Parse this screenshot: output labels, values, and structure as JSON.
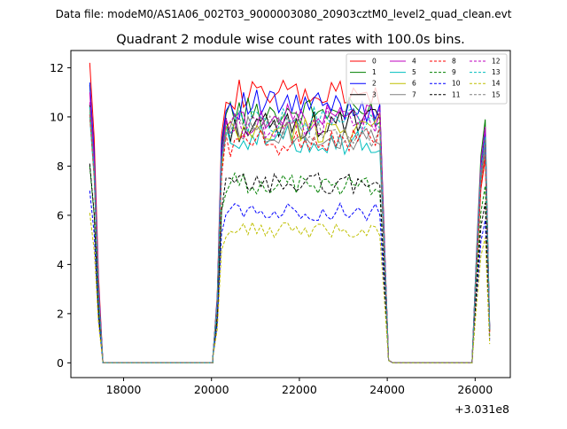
{
  "figure": {
    "suptitle": "Data file: modeM0/AS1A06_002T03_9000003080_20903cztM0_level2_quad_clean.evt"
  },
  "chart_data": {
    "type": "line",
    "title": "Quadrant 2 module wise count rates with 100.0s bins.",
    "xlabel": "",
    "ylabel": "",
    "x_offset_label": "+3.031e8",
    "xlim": [
      16800,
      26800
    ],
    "ylim": [
      -0.6,
      12.7
    ],
    "x_ticks": [
      18000,
      20000,
      22000,
      24000,
      26000
    ],
    "x_tick_labels": [
      "18000",
      "20000",
      "22000",
      "24000",
      "26000"
    ],
    "y_ticks": [
      0,
      2,
      4,
      6,
      8,
      10,
      12
    ],
    "y_tick_labels": [
      "0",
      "2",
      "4",
      "6",
      "8",
      "10",
      "12"
    ],
    "grid": false,
    "legend_placement": "top-right",
    "legend_columns": 4,
    "segments": [
      {
        "start": 17230,
        "step": 100,
        "count": 3
      },
      {
        "start": 17530,
        "step": 100,
        "count": 26
      },
      {
        "start": 20030,
        "step": 100,
        "count": 40
      },
      {
        "start": 24030,
        "step": 100,
        "count": 20
      },
      {
        "start": 26030,
        "step": 100,
        "count": 4
      }
    ],
    "series": [
      {
        "name": "0",
        "color": "#ff0000",
        "dashed": false,
        "levels": [
          12.2,
          3.5,
          10.9,
          0.0,
          10.8,
          0.0,
          8.3
        ]
      },
      {
        "name": "1",
        "color": "#008000",
        "dashed": false,
        "levels": [
          11.3,
          3.0,
          10.2,
          0.0,
          10.2,
          0.0,
          9.9
        ]
      },
      {
        "name": "2",
        "color": "#0000ff",
        "dashed": false,
        "levels": [
          11.4,
          3.2,
          10.5,
          0.0,
          10.4,
          0.0,
          9.4
        ]
      },
      {
        "name": "3",
        "color": "#000000",
        "dashed": false,
        "levels": [
          10.5,
          2.8,
          9.5,
          0.0,
          9.8,
          0.0,
          9.1
        ]
      },
      {
        "name": "4",
        "color": "#bf00bf",
        "dashed": false,
        "levels": [
          11.0,
          3.1,
          9.8,
          0.0,
          10.1,
          0.0,
          9.6
        ]
      },
      {
        "name": "5",
        "color": "#00bfbf",
        "dashed": false,
        "levels": [
          10.0,
          2.7,
          9.2,
          0.0,
          8.9,
          0.0,
          8.8
        ]
      },
      {
        "name": "6",
        "color": "#bfbf00",
        "dashed": false,
        "levels": [
          10.2,
          2.7,
          9.3,
          0.0,
          9.6,
          0.0,
          8.6
        ]
      },
      {
        "name": "7",
        "color": "#808080",
        "dashed": false,
        "levels": [
          10.4,
          2.8,
          9.7,
          0.0,
          8.9,
          0.0,
          8.7
        ]
      },
      {
        "name": "8",
        "color": "#ff0000",
        "dashed": true,
        "levels": [
          10.1,
          2.7,
          8.9,
          0.0,
          9.1,
          0.0,
          8.4
        ]
      },
      {
        "name": "9",
        "color": "#008000",
        "dashed": true,
        "levels": [
          8.0,
          2.1,
          7.3,
          0.0,
          7.2,
          0.0,
          7.2
        ]
      },
      {
        "name": "10",
        "color": "#0000ff",
        "dashed": true,
        "levels": [
          7.0,
          1.8,
          6.2,
          0.0,
          6.1,
          0.0,
          5.8
        ]
      },
      {
        "name": "11",
        "color": "#000000",
        "dashed": true,
        "levels": [
          8.1,
          2.1,
          7.3,
          0.0,
          7.3,
          0.0,
          6.5
        ]
      },
      {
        "name": "12",
        "color": "#bf00bf",
        "dashed": true,
        "levels": [
          10.6,
          2.9,
          9.6,
          0.0,
          9.9,
          0.0,
          9.0
        ]
      },
      {
        "name": "13",
        "color": "#00bfbf",
        "dashed": true,
        "levels": [
          10.4,
          2.8,
          9.8,
          0.0,
          9.9,
          0.0,
          9.2
        ]
      },
      {
        "name": "14",
        "color": "#bfbf00",
        "dashed": true,
        "levels": [
          6.1,
          1.6,
          5.4,
          0.0,
          5.4,
          0.0,
          5.1
        ]
      },
      {
        "name": "15",
        "color": "#808080",
        "dashed": true,
        "levels": [
          10.3,
          2.8,
          9.6,
          0.0,
          9.2,
          0.0,
          9.1
        ]
      }
    ]
  }
}
